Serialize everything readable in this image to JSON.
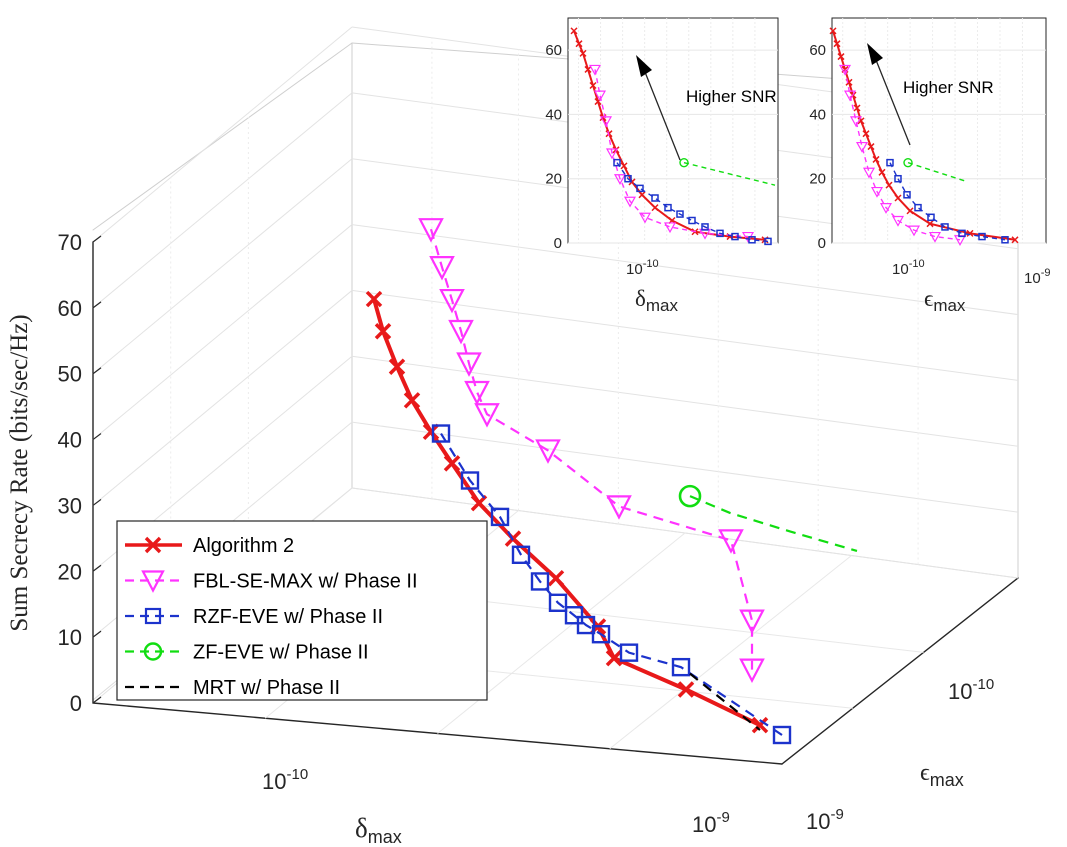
{
  "chart_data": [
    {
      "type": "line",
      "projection": "3d",
      "ylabel": "Sum Secrecy Rate (bits/sec/Hz)",
      "xlabel_main": "δ",
      "xlabel_sub": "max",
      "zlabel_main": "ϵ",
      "zlabel_sub": "max",
      "yticks": [
        "0",
        "10",
        "20",
        "30",
        "40",
        "50",
        "60",
        "70"
      ],
      "ylim": [
        0,
        70
      ],
      "xticks": [
        {
          "base": "10",
          "exp": "-10"
        },
        {
          "base": "10",
          "exp": "-9"
        }
      ],
      "zticks": [
        {
          "base": "10",
          "exp": "-10"
        },
        {
          "base": "10",
          "exp": "-9"
        }
      ],
      "grid": true,
      "legend_position": "lower-left",
      "series": [
        {
          "name": "Algorithm 2",
          "color": "#e8191a",
          "marker": "x",
          "style": "solid",
          "y": [
            66.5,
            61,
            55,
            49,
            43,
            37,
            30.5,
            24.5,
            18.8,
            14.2,
            10,
            6,
            1.8
          ]
        },
        {
          "name": "FBL-SE-MAX w/ Phase II",
          "color": "#ff33ff",
          "marker": "triangle-down",
          "style": "dashed",
          "y": [
            56,
            51,
            46,
            41,
            35,
            29,
            23.5,
            18,
            13,
            9.2,
            7.5,
            4
          ]
        },
        {
          "name": "RZF-EVE w/ Phase II",
          "color": "#1c33cc",
          "marker": "square",
          "style": "dashed",
          "y": [
            43.5,
            35,
            27.8,
            22.2,
            18,
            14,
            11.2,
            8.8,
            6.8,
            4,
            1.8,
            0
          ]
        },
        {
          "name": "ZF-EVE w/ Phase II",
          "color": "#11dd11",
          "marker": "circle",
          "style": "dashed",
          "y": [
            30.5,
            24,
            18,
            12
          ]
        },
        {
          "name": "MRT w/ Phase II",
          "color": "#000000",
          "marker": "none",
          "style": "dashed",
          "y": [
            4,
            0
          ]
        }
      ]
    },
    {
      "type": "line",
      "inset": "top-middle",
      "xlabel_main": "δ",
      "xlabel_sub": "max",
      "yticks": [
        "0",
        "20",
        "40",
        "60"
      ],
      "ylim": [
        0,
        70
      ],
      "xtick": {
        "base": "10",
        "exp": "-10"
      },
      "annotation": "Higher SNR",
      "series": [
        {
          "name": "Algorithm 2",
          "y": [
            66,
            62,
            59,
            54,
            49,
            44,
            39,
            34,
            29,
            24,
            19,
            15,
            11,
            7,
            3.5,
            2,
            1
          ]
        },
        {
          "name": "FBL-SE-MAX w/ Phase II",
          "y": [
            54,
            46,
            38,
            28,
            20,
            13,
            8,
            5,
            3,
            2
          ]
        },
        {
          "name": "RZF-EVE w/ Phase II",
          "y": [
            25,
            20,
            17,
            14,
            11,
            9,
            7,
            5,
            3,
            2,
            1,
            0.5
          ]
        },
        {
          "name": "ZF-EVE w/ Phase II",
          "y": [
            25,
            18
          ]
        }
      ]
    },
    {
      "type": "line",
      "inset": "top-right",
      "xlabel_main": "ϵ",
      "xlabel_sub": "max",
      "yticks": [
        "0",
        "20",
        "40",
        "60"
      ],
      "ylim": [
        0,
        70
      ],
      "xticks": [
        {
          "base": "10",
          "exp": "-10"
        },
        {
          "base": "10",
          "exp": "-9"
        }
      ],
      "annotation": "Higher SNR",
      "series": [
        {
          "name": "Algorithm 2",
          "y": [
            66,
            62,
            58,
            54,
            50,
            46,
            42,
            38,
            34,
            30,
            26,
            22,
            18,
            14,
            10,
            6,
            3,
            1
          ]
        },
        {
          "name": "FBL-SE-MAX w/ Phase II",
          "y": [
            54,
            46,
            38,
            30,
            22,
            16,
            11,
            7,
            4,
            2,
            1
          ]
        },
        {
          "name": "RZF-EVE w/ Phase II",
          "y": [
            25,
            20,
            15,
            11,
            8,
            5,
            3,
            2,
            1
          ]
        },
        {
          "name": "ZF-EVE w/ Phase II",
          "y": [
            25,
            19
          ]
        }
      ]
    }
  ]
}
